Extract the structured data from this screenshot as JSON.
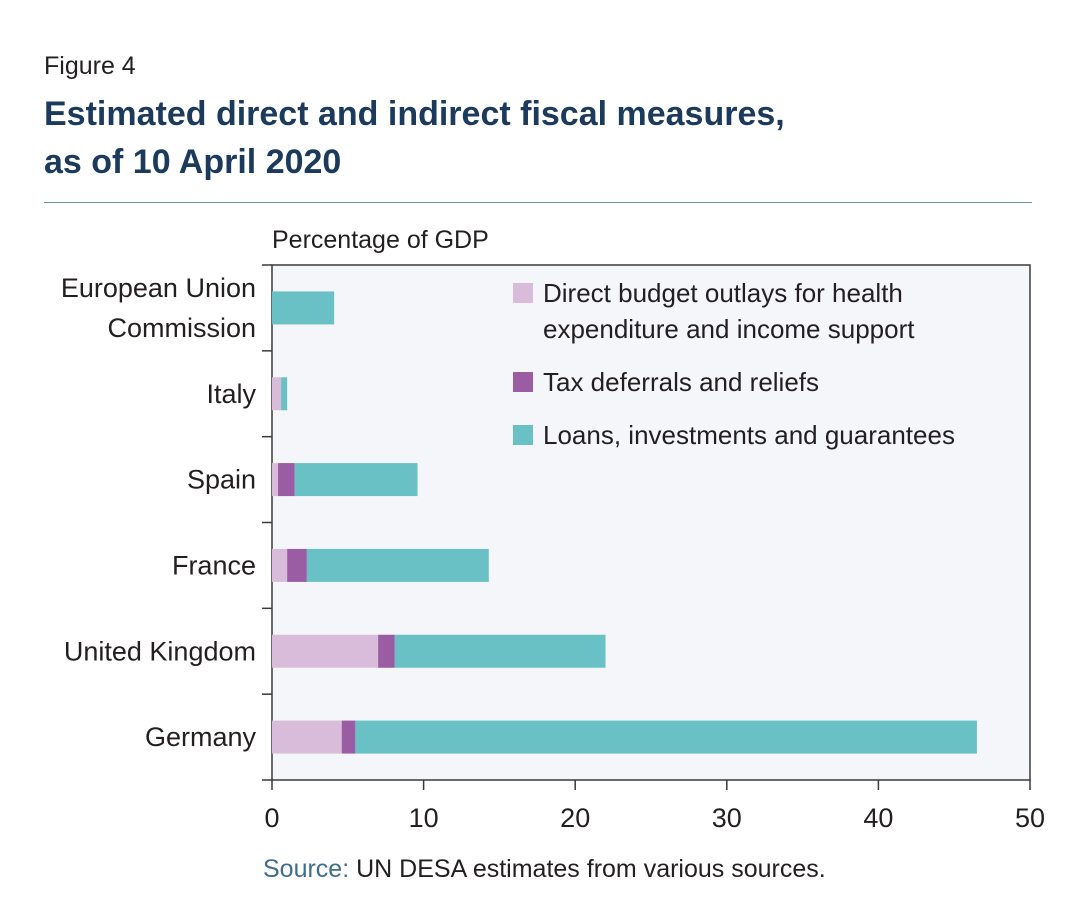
{
  "figure_label": "Figure 4",
  "title_lines": [
    "Estimated direct and indirect fiscal measures,",
    "as of 10 April 2020"
  ],
  "source": {
    "label": "Source:",
    "text": " UN DESA estimates from various sources."
  },
  "colors": {
    "direct": "#d8bcd9",
    "tax": "#9a5ca3",
    "loans": "#6ac1c5",
    "plot_bg": "#f4f6f9",
    "title": "#1b3a5c"
  },
  "chart_data": {
    "type": "bar",
    "orientation": "horizontal",
    "stacked": true,
    "ylabel_top": "Percentage of GDP",
    "categories": [
      [
        "European Union",
        "Commission"
      ],
      [
        "Italy"
      ],
      [
        "Spain"
      ],
      [
        "France"
      ],
      [
        "United Kingdom"
      ],
      [
        "Germany"
      ]
    ],
    "series": [
      {
        "name": "Direct budget outlays for health expenditure and income support",
        "legend_lines": [
          "Direct budget outlays for health",
          "expenditure and income support"
        ],
        "color_key": "direct",
        "values": [
          0,
          0.6,
          0.4,
          1.0,
          7.0,
          4.6
        ]
      },
      {
        "name": "Tax deferrals and reliefs",
        "legend_lines": [
          "Tax deferrals and reliefs"
        ],
        "color_key": "tax",
        "values": [
          0,
          0,
          1.1,
          1.3,
          1.1,
          0.9
        ]
      },
      {
        "name": "Loans, investments and guarantees",
        "legend_lines": [
          "Loans, investments and guarantees"
        ],
        "color_key": "loans",
        "values": [
          4.1,
          0.4,
          8.1,
          12.0,
          13.9,
          41.0
        ]
      }
    ],
    "xlim": [
      0,
      50
    ],
    "xticks": [
      0,
      10,
      20,
      30,
      40,
      50
    ],
    "grid": false,
    "legend_position": "top-right"
  }
}
